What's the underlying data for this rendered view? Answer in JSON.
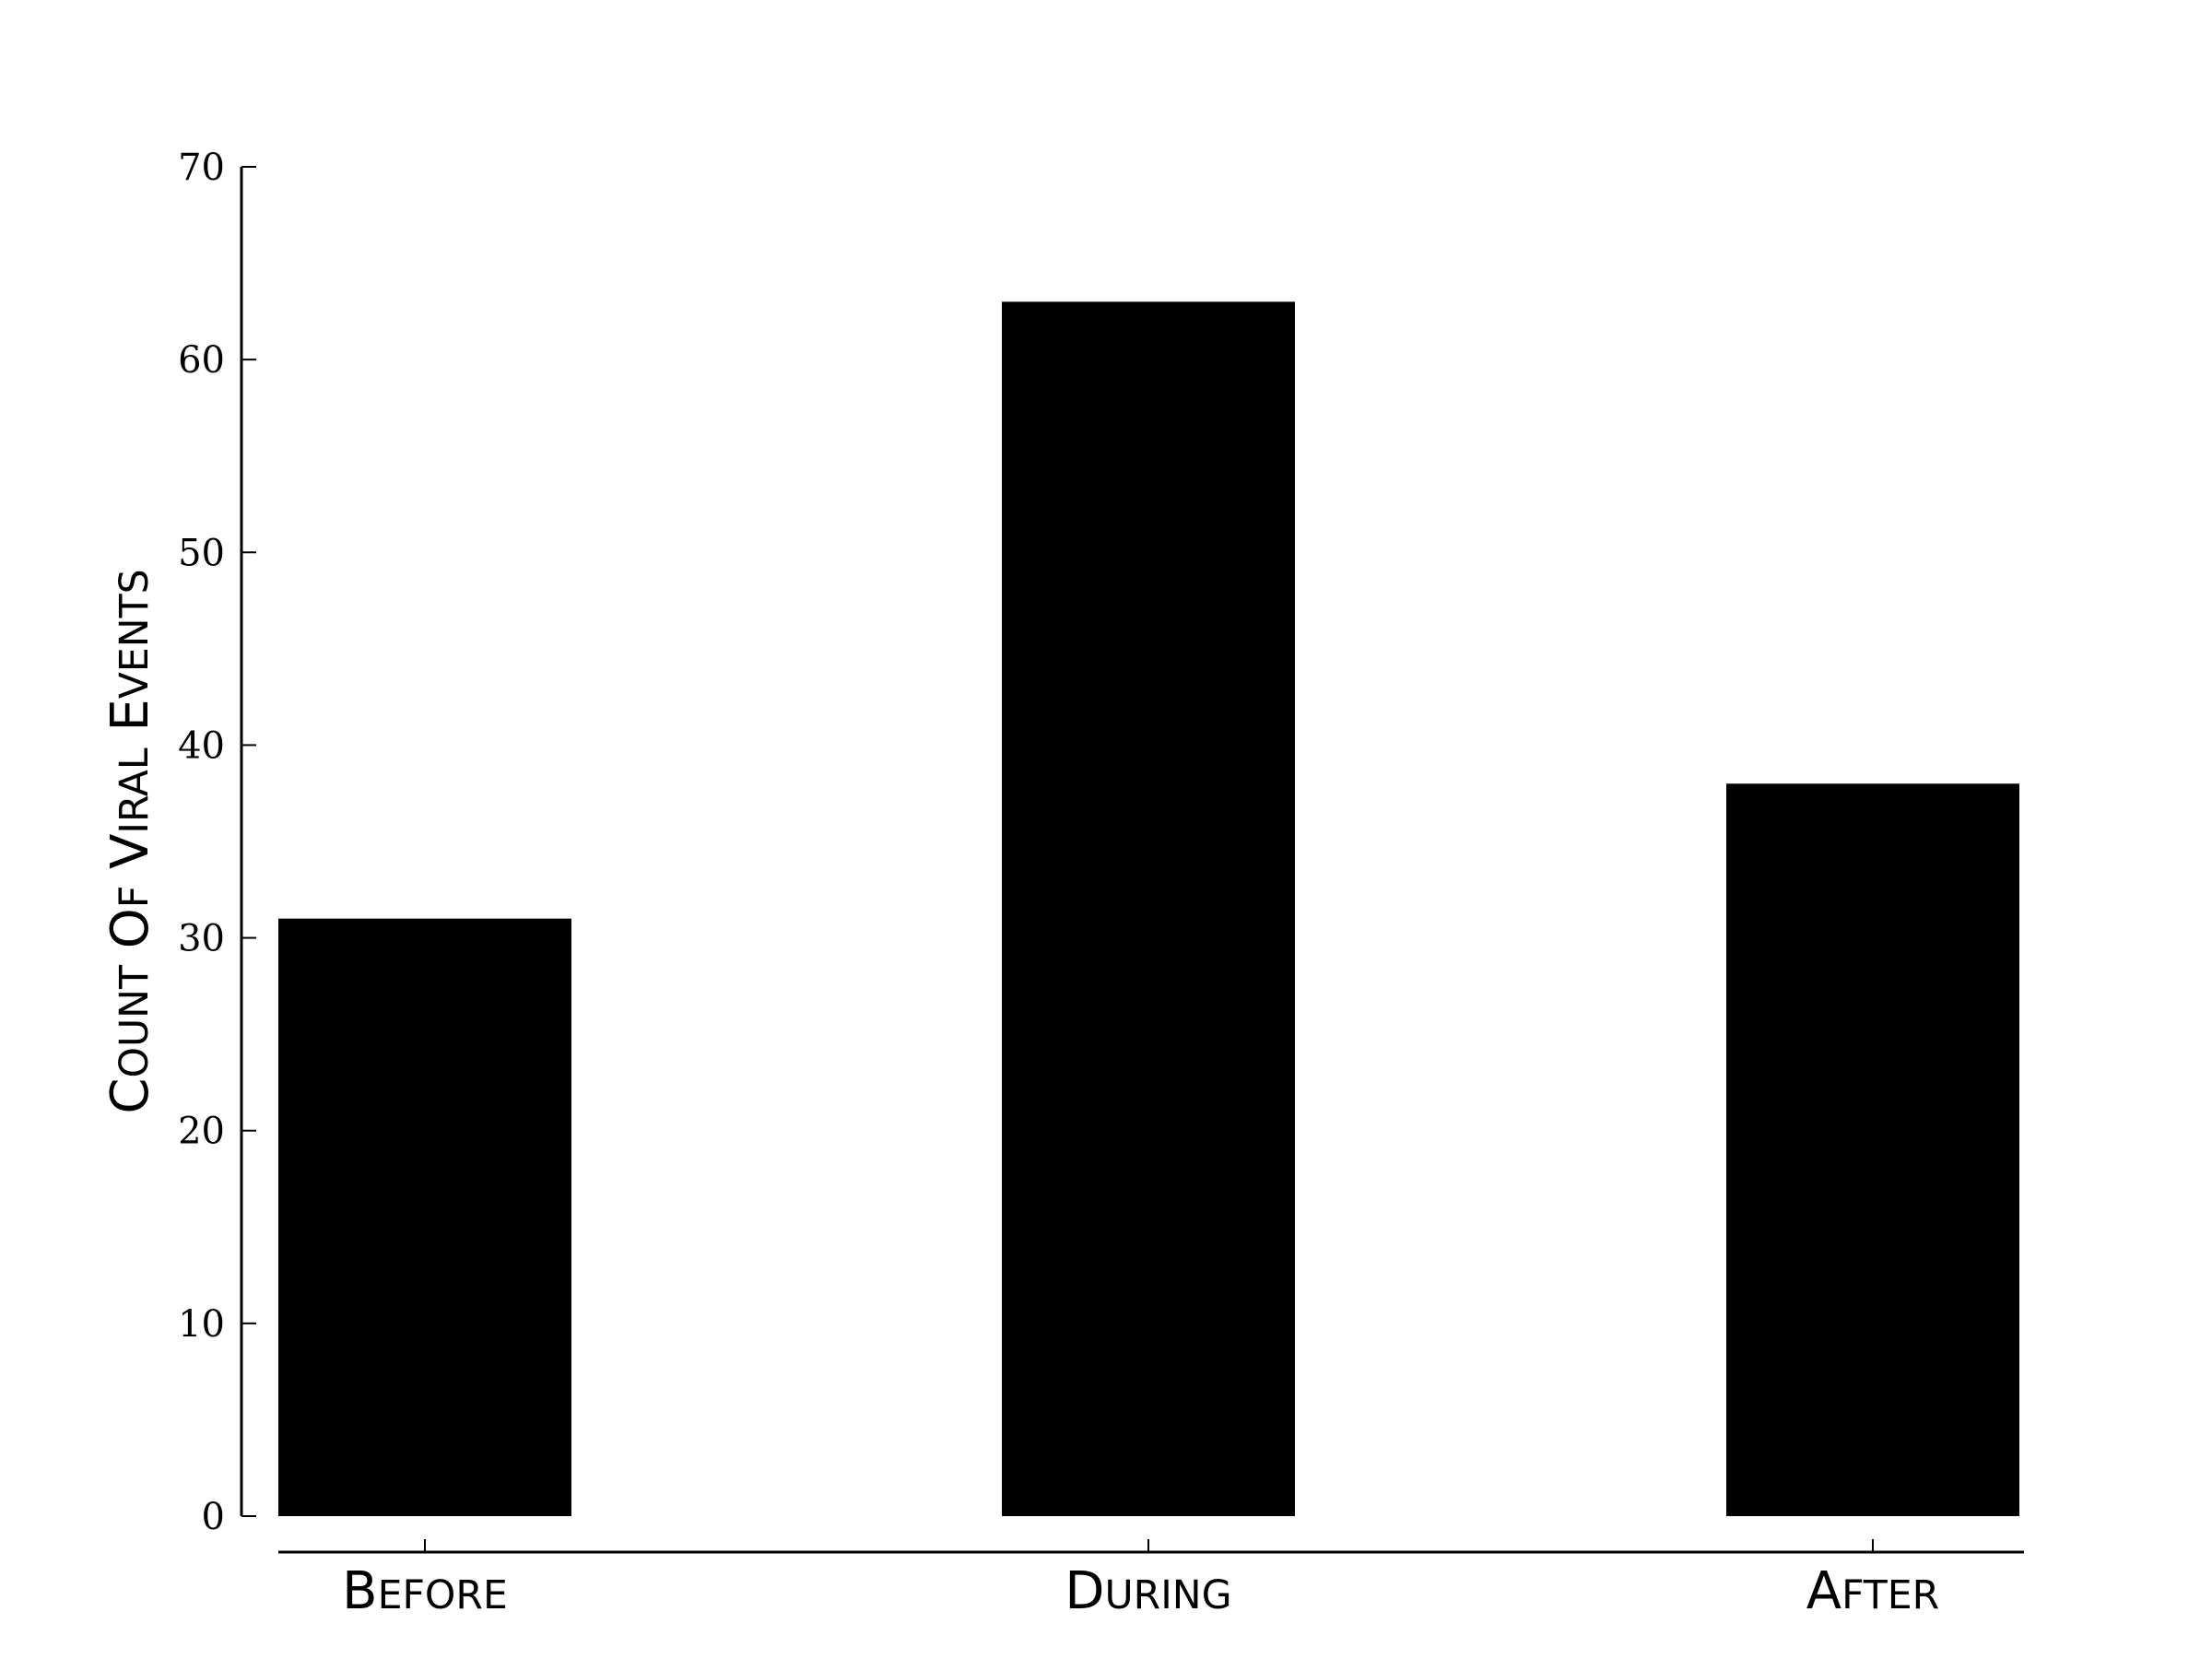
{
  "chart_data": {
    "type": "bar",
    "categories": [
      "Before",
      "During",
      "After"
    ],
    "values": [
      31,
      63,
      38
    ],
    "title": "",
    "xlabel": "",
    "ylabel": "Count of viral events",
    "ylim": [
      0,
      70
    ],
    "yticks": [
      "0",
      "10",
      "20",
      "30",
      "40",
      "50",
      "60",
      "70"
    ],
    "grid": false,
    "legend": "none",
    "colors": {
      "bar": "#000000",
      "axis": "#000000",
      "background": "#ffffff"
    }
  }
}
